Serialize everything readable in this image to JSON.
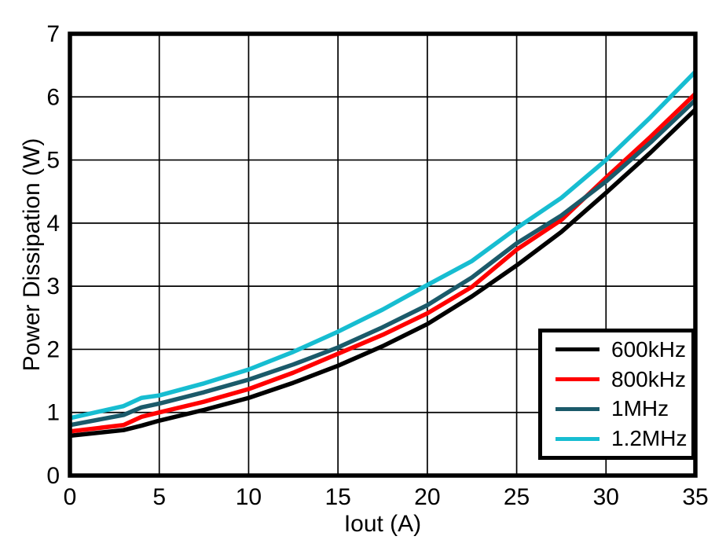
{
  "chart_data": {
    "type": "line",
    "title": "",
    "xlabel": "Iout (A)",
    "ylabel": "Power Dissipation (W)",
    "xlim": [
      0,
      35
    ],
    "ylim": [
      0,
      7
    ],
    "xticks": [
      0,
      5,
      10,
      15,
      20,
      25,
      30,
      35
    ],
    "yticks": [
      0,
      1,
      2,
      3,
      4,
      5,
      6,
      7
    ],
    "grid": true,
    "legend_position": "bottom-right",
    "x": [
      0,
      3,
      4,
      5,
      7.5,
      10,
      12.5,
      15,
      17.5,
      20,
      22.5,
      25,
      27.5,
      30,
      32.5,
      35
    ],
    "series": [
      {
        "name": "600kHz",
        "color": "#000000",
        "values": [
          0.63,
          0.72,
          0.79,
          0.87,
          1.04,
          1.23,
          1.47,
          1.74,
          2.05,
          2.4,
          2.84,
          3.33,
          3.86,
          4.48,
          5.12,
          5.8
        ]
      },
      {
        "name": "800kHz",
        "color": "#FF0000",
        "values": [
          0.7,
          0.8,
          0.93,
          1.0,
          1.17,
          1.37,
          1.63,
          1.93,
          2.23,
          2.57,
          2.99,
          3.58,
          4.05,
          4.72,
          5.37,
          6.05
        ]
      },
      {
        "name": "1MHz",
        "color": "#1B5A6A",
        "values": [
          0.8,
          0.96,
          1.08,
          1.14,
          1.32,
          1.52,
          1.76,
          2.03,
          2.35,
          2.7,
          3.14,
          3.68,
          4.12,
          4.66,
          5.28,
          5.95
        ]
      },
      {
        "name": "1.2MHz",
        "color": "#17BDD1",
        "values": [
          0.91,
          1.1,
          1.23,
          1.27,
          1.46,
          1.68,
          1.96,
          2.28,
          2.63,
          3.02,
          3.4,
          3.92,
          4.4,
          5.0,
          5.68,
          6.4
        ]
      }
    ],
    "colors": {
      "background": "#FFFFFF",
      "frame": "#000000",
      "gridline": "#000000",
      "text": "#000000"
    }
  }
}
